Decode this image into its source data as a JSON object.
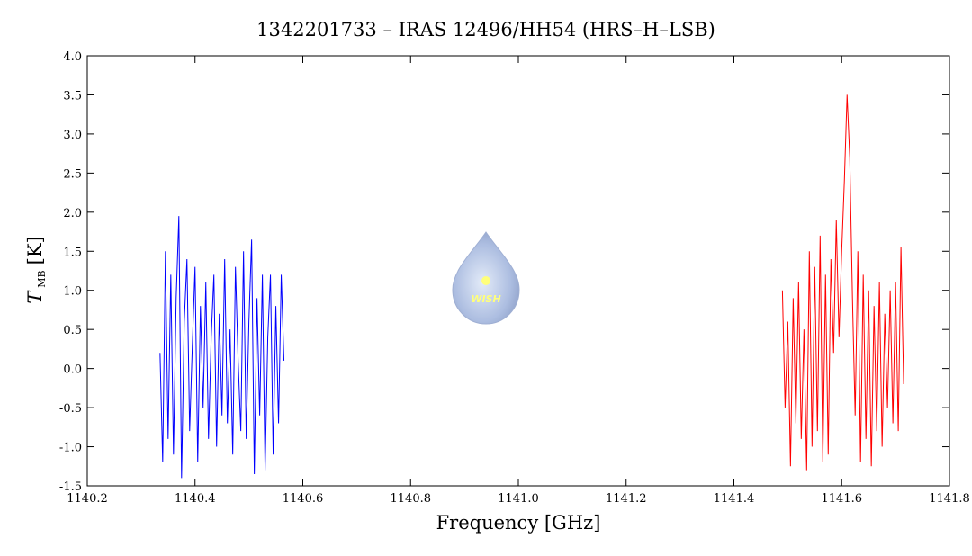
{
  "chart_data": {
    "type": "line",
    "title": "1342201733 – IRAS 12496/HH54 (HRS–H–LSB)",
    "x_label": "Frequency [GHz]",
    "y_label_symbol": "T",
    "y_label_sub": "MB",
    "y_label_unit": "[K]",
    "watermark": "WISH",
    "xlim": [
      1140.2,
      1141.8
    ],
    "xticks": [
      1140.2,
      1140.4,
      1140.6,
      1140.8,
      {
        "value": 1141.0,
        "label": "1141.0"
      },
      1141.2,
      1141.4,
      1141.6,
      1141.8
    ],
    "ylim": [
      -1.5,
      4.0
    ],
    "yticks": [
      -1.5,
      {
        "value": -1.0,
        "label": "-1.0"
      },
      -0.5,
      {
        "value": 0.0,
        "label": "0.0"
      },
      0.5,
      {
        "value": 1.0,
        "label": "1.0"
      },
      1.5,
      {
        "value": 2.0,
        "label": "2.0"
      },
      2.5,
      {
        "value": 3.0,
        "label": "3.0"
      },
      3.5,
      {
        "value": 4.0,
        "label": "4.0"
      }
    ],
    "series": [
      {
        "color": "#0000ff",
        "x": [
          1140.335,
          1140.34,
          1140.345,
          1140.35,
          1140.355,
          1140.36,
          1140.365,
          1140.37,
          1140.375,
          1140.38,
          1140.385,
          1140.39,
          1140.395,
          1140.4,
          1140.405,
          1140.41,
          1140.415,
          1140.42,
          1140.425,
          1140.43,
          1140.435,
          1140.44,
          1140.445,
          1140.45,
          1140.455,
          1140.46,
          1140.465,
          1140.47,
          1140.475,
          1140.48,
          1140.485,
          1140.49,
          1140.495,
          1140.5,
          1140.505,
          1140.51,
          1140.515,
          1140.52,
          1140.525,
          1140.53,
          1140.535,
          1140.54,
          1140.545,
          1140.55,
          1140.555,
          1140.56,
          1140.565
        ],
        "values": [
          0.2,
          -1.2,
          1.5,
          -0.9,
          1.2,
          -1.1,
          0.9,
          1.95,
          -1.4,
          0.6,
          1.4,
          -0.8,
          0.3,
          1.3,
          -1.2,
          0.8,
          -0.5,
          1.1,
          -0.9,
          0.4,
          1.2,
          -1.0,
          0.7,
          -0.6,
          1.4,
          -0.7,
          0.5,
          -1.1,
          1.3,
          0.1,
          -0.8,
          1.5,
          -0.9,
          0.6,
          1.65,
          -1.35,
          0.9,
          -0.6,
          1.2,
          -1.3,
          0.4,
          1.2,
          -1.1,
          0.8,
          -0.7,
          1.2,
          0.1
        ]
      },
      {
        "color": "#ff0000",
        "x": [
          1141.49,
          1141.495,
          1141.5,
          1141.505,
          1141.51,
          1141.515,
          1141.52,
          1141.525,
          1141.53,
          1141.535,
          1141.54,
          1141.545,
          1141.55,
          1141.555,
          1141.56,
          1141.565,
          1141.57,
          1141.575,
          1141.58,
          1141.585,
          1141.59,
          1141.595,
          1141.6,
          1141.605,
          1141.61,
          1141.615,
          1141.62,
          1141.625,
          1141.63,
          1141.635,
          1141.64,
          1141.645,
          1141.65,
          1141.655,
          1141.66,
          1141.665,
          1141.67,
          1141.675,
          1141.68,
          1141.685,
          1141.69,
          1141.695,
          1141.7,
          1141.705,
          1141.71,
          1141.715
        ],
        "values": [
          1.0,
          -0.5,
          0.6,
          -1.25,
          0.9,
          -0.7,
          1.1,
          -0.9,
          0.5,
          -1.3,
          1.5,
          -1.0,
          1.3,
          -0.8,
          1.7,
          -1.2,
          1.2,
          -1.1,
          1.4,
          0.2,
          1.9,
          0.4,
          1.5,
          2.4,
          3.5,
          2.7,
          0.9,
          -0.6,
          1.5,
          -1.2,
          1.2,
          -0.9,
          1.0,
          -1.25,
          0.8,
          -0.8,
          1.1,
          -1.0,
          0.7,
          -0.5,
          1.0,
          -0.7,
          1.1,
          -0.8,
          1.55,
          -0.2
        ]
      }
    ]
  }
}
